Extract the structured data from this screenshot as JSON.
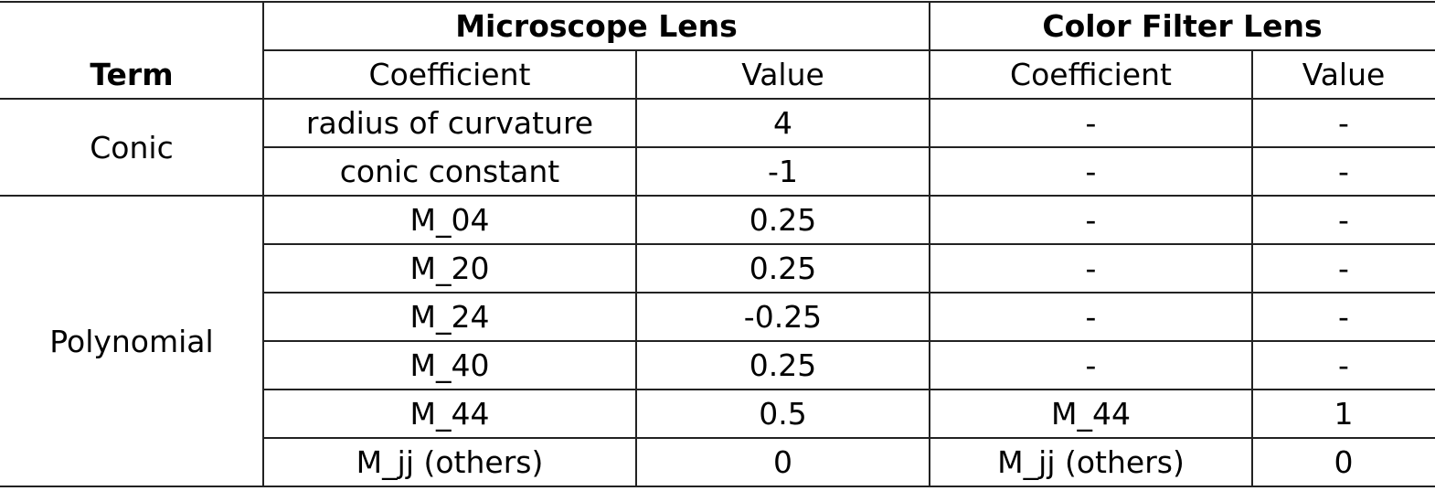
{
  "header": {
    "term": "Term",
    "groups": [
      "Microscope Lens",
      "Color Filter Lens"
    ],
    "columns": [
      "Coefficient",
      "Value",
      "Coefficient",
      "Value"
    ]
  },
  "sections": [
    {
      "term": "Conic",
      "rows": [
        [
          "radius of curvature",
          4,
          "-",
          "-"
        ],
        [
          "conic constant",
          -1,
          "-",
          "-"
        ]
      ]
    },
    {
      "term": "Polynomial",
      "rows": [
        [
          "M_04",
          0.25,
          "-",
          "-"
        ],
        [
          "M_20",
          0.25,
          "-",
          "-"
        ],
        [
          "M_24",
          -0.25,
          "-",
          "-"
        ],
        [
          "M_40",
          0.25,
          "-",
          "-"
        ],
        [
          "M_44",
          0.5,
          "M_44",
          1
        ],
        [
          "M_jj (others)",
          0,
          "M_jj (others)",
          0
        ]
      ]
    }
  ]
}
